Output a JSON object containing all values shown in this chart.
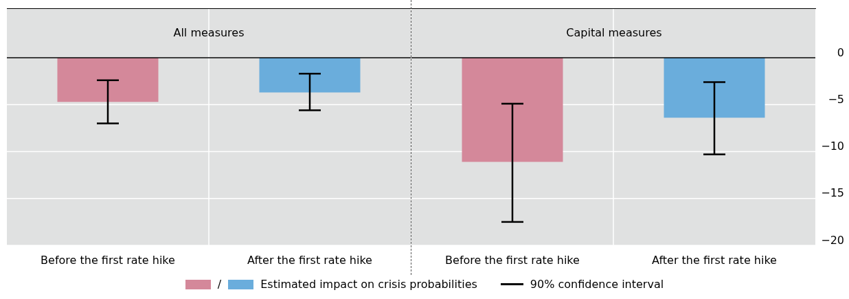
{
  "chart_data": [
    {
      "type": "bar",
      "title": "All measures",
      "categories": [
        "Before the first rate hike",
        "After the first rate hike"
      ],
      "series": [
        {
          "name": "Estimated impact on crisis probabilities",
          "values": [
            -4.7,
            -3.7
          ],
          "colors": [
            "#d4889a",
            "#6aaddc"
          ],
          "errors": [
            [
              -7.0,
              -2.4
            ],
            [
              -5.6,
              -1.7
            ]
          ]
        }
      ],
      "ylim": [
        -20,
        5.2
      ],
      "yticks": [
        -20,
        -15,
        -10,
        -5,
        0
      ],
      "grid": true,
      "tick_labels": "x",
      "legend": "bottom",
      "ref_lines": [
        {
          "axis": "y",
          "value": 0,
          "color": "#000000"
        }
      ],
      "annotations": [
        "/",
        "90% confidence interval"
      ]
    },
    {
      "type": "bar",
      "title": "Capital measures",
      "categories": [
        "Before the first rate hike",
        "After the first rate hike"
      ],
      "values": [
        -11.1,
        -6.4
      ],
      "colors": [
        "#d4889a",
        "#6aaddc"
      ],
      "errors": [
        [
          -17.5,
          -4.9
        ],
        [
          -10.3,
          -2.6
        ]
      ],
      "ylim": [
        -20,
        5.2
      ],
      "yticks": [
        {
          "value": -20,
          "label": "−20"
        },
        {
          "value": -15,
          "label": "−15"
        },
        {
          "value": -10,
          "label": "−10"
        },
        {
          "value": -5,
          "label": "−5"
        },
        0
      ],
      "grid": true,
      "ref_lines": [
        {
          "axis": "y",
          "value": 0,
          "color": "#000000"
        }
      ]
    }
  ]
}
